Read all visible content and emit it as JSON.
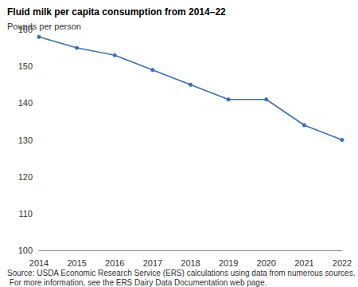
{
  "chart_data": {
    "type": "line",
    "title": "Fluid milk per capita consumption from 2014–22",
    "ylabel": "Pounds per person",
    "source": "Source: USDA Economic Research Service (ERS) calculations using data from numerous sources. For more information, see the ERS Dairy Data Documentation web page.",
    "categories": [
      "2014",
      "2015",
      "2016",
      "2017",
      "2018",
      "2019",
      "2020",
      "2021",
      "2022"
    ],
    "values": [
      158,
      155,
      153,
      149,
      145,
      141,
      141,
      134,
      130
    ],
    "color": "#3b6fb6",
    "marker": "circle",
    "ylim": [
      100,
      160
    ],
    "yticks": [
      100,
      110,
      120,
      130,
      140,
      150,
      160
    ],
    "grid": false
  }
}
